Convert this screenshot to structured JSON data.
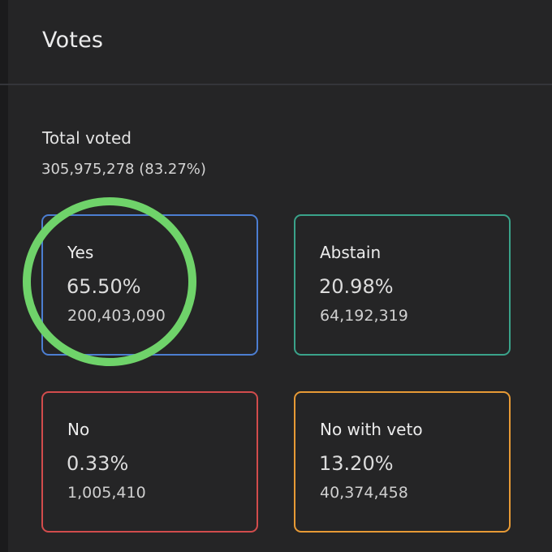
{
  "header": {
    "title": "Votes"
  },
  "summary": {
    "total_label": "Total voted",
    "total_value": "305,975,278 (83.27%)"
  },
  "options": [
    {
      "label": "Yes",
      "percent": "65.50%",
      "count": "200,403,090",
      "color": "#4c7ed1"
    },
    {
      "label": "Abstain",
      "percent": "20.98%",
      "count": "64,192,319",
      "color": "#3aa38a"
    },
    {
      "label": "No",
      "percent": "0.33%",
      "count": "1,005,410",
      "color": "#d24c4c"
    },
    {
      "label": "No with veto",
      "percent": "13.20%",
      "count": "40,374,458",
      "color": "#e79a35"
    }
  ],
  "annotation": {
    "highlight_color": "#6fd36a"
  }
}
